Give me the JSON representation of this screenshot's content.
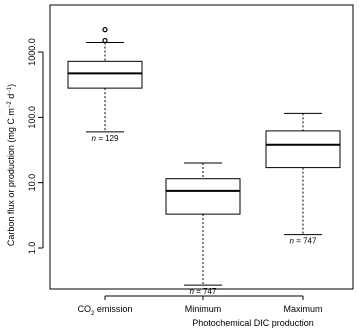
{
  "chart_data": {
    "type": "boxplot",
    "y_scale": "log10",
    "ylim": [
      0.2,
      3000
    ],
    "yticks": [
      {
        "value": 1,
        "label": "1.0"
      },
      {
        "value": 10,
        "label": "10.0"
      },
      {
        "value": 100,
        "label": "100.0"
      },
      {
        "value": 1000,
        "label": "1000.0"
      }
    ],
    "ylabel": {
      "prefix": "Carbon flux or production (mg C m",
      "sup1": "−2",
      "mid": " d",
      "sup2": "−1",
      "suffix": ")"
    },
    "xlabel": "Photochemical DIC production",
    "categories": [
      {
        "label_main": "CO",
        "label_sub": "2",
        "label_rest": " emission"
      },
      {
        "label_main": "Minimum",
        "label_sub": "",
        "label_rest": ""
      },
      {
        "label_main": "Maximum",
        "label_sub": "",
        "label_rest": ""
      }
    ],
    "boxes": [
      {
        "whisker_low": 60,
        "q1": 280,
        "median": 470,
        "q3": 720,
        "whisker_high": 1400,
        "outliers": [
          1500,
          2200
        ],
        "n_prefix": "n",
        "n_text": " = 129"
      },
      {
        "whisker_low": 0.27,
        "q1": 3.3,
        "median": 7.5,
        "q3": 11.5,
        "whisker_high": 20,
        "outliers": [],
        "n_prefix": "n",
        "n_text": " = 747"
      },
      {
        "whisker_low": 1.6,
        "q1": 17,
        "median": 38,
        "q3": 62,
        "whisker_high": 115,
        "outliers": [],
        "n_prefix": "n",
        "n_text": " = 747"
      }
    ]
  }
}
